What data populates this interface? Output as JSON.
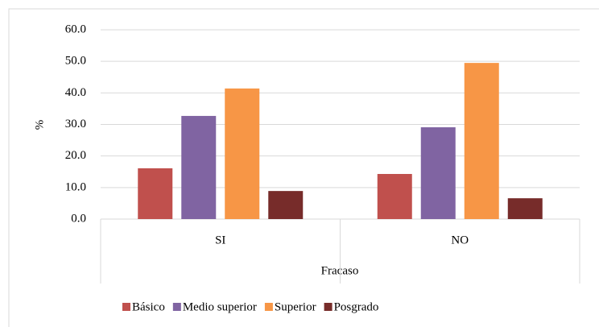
{
  "chart_data": {
    "type": "bar",
    "y_label": "%",
    "x_label": "Fracaso",
    "categories": [
      "SI",
      "NO"
    ],
    "series": [
      {
        "name": "Básico",
        "color": "#c0504d",
        "values": [
          16.1,
          14.3
        ]
      },
      {
        "name": "Medio superior",
        "color": "#8064a2",
        "values": [
          32.7,
          29.1
        ]
      },
      {
        "name": "Superior",
        "color": "#f79646",
        "values": [
          41.4,
          49.5
        ]
      },
      {
        "name": "Posgrado",
        "color": "#772c2a",
        "values": [
          8.9,
          6.6
        ]
      }
    ],
    "ylim": [
      0,
      60
    ],
    "yticks": [
      {
        "value": 0,
        "label": "0.0"
      },
      {
        "value": 10,
        "label": "10.0"
      },
      {
        "value": 20,
        "label": "20.0"
      },
      {
        "value": 30,
        "label": "30.0"
      },
      {
        "value": 40,
        "label": "40.0"
      },
      {
        "value": 50,
        "label": "50.0"
      },
      {
        "value": 60,
        "label": "60.0"
      }
    ],
    "grid": true,
    "legend": "bottom"
  }
}
